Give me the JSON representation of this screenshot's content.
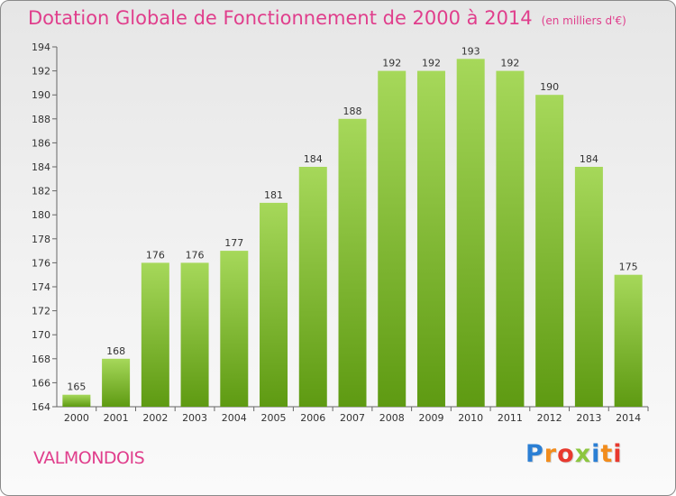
{
  "header": {
    "title": "Dotation Globale de Fonctionnement de 2000 à 2014",
    "unit": "(en milliers d'€)"
  },
  "footer": {
    "place": "VALMONDOIS",
    "logo_letters": [
      "P",
      "r",
      "o",
      "x",
      "i",
      "t",
      "i"
    ],
    "logo_colors": [
      "#2b7fd4",
      "#f28c1c",
      "#e8392e",
      "#8cc63f",
      "#2b7fd4",
      "#f28c1c",
      "#e8392e"
    ]
  },
  "colors": {
    "bar_light": "#a6d85a",
    "bar_dark": "#5e9a12",
    "text": "#333333",
    "accent": "#e03e8c"
  },
  "chart_data": {
    "type": "bar",
    "title": "Dotation Globale de Fonctionnement de 2000 à 2014",
    "subtitle": "(en milliers d'€)",
    "categories": [
      "2000",
      "2001",
      "2002",
      "2003",
      "2004",
      "2005",
      "2006",
      "2007",
      "2008",
      "2009",
      "2010",
      "2011",
      "2012",
      "2013",
      "2014"
    ],
    "values": [
      165,
      168,
      176,
      176,
      177,
      181,
      184,
      188,
      192,
      192,
      193,
      192,
      190,
      184,
      175
    ],
    "ylim": [
      164,
      194
    ],
    "yticks": [
      164,
      166,
      168,
      170,
      172,
      174,
      176,
      178,
      180,
      182,
      184,
      186,
      188,
      190,
      192,
      194
    ],
    "xlabel": "",
    "ylabel": "",
    "grid": false,
    "legend": "none"
  }
}
